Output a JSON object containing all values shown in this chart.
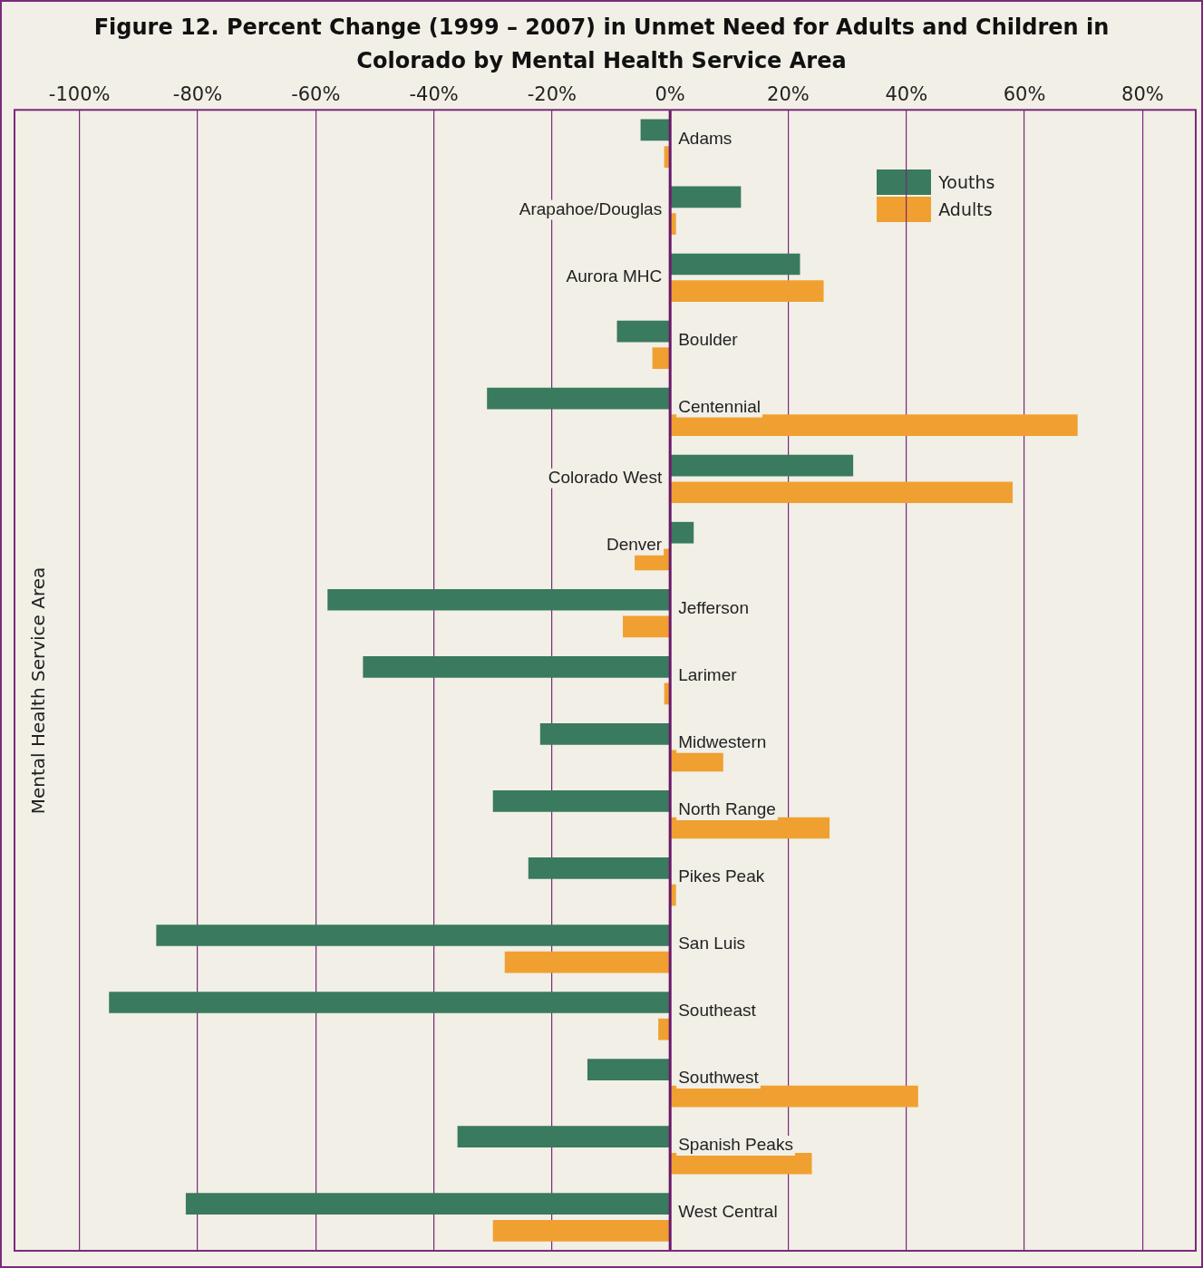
{
  "chart_data": {
    "type": "bar",
    "orientation": "horizontal",
    "title": "Figure 12. Percent Change (1999 – 2007) in Unmet Need for Adults and Children in Colorado by Mental Health Service Area",
    "ylabel": "Mental Health Service Area",
    "categories": [
      "Adams",
      "Arapahoe/Douglas",
      "Aurora MHC",
      "Boulder",
      "Centennial",
      "Colorado West",
      "Denver",
      "Jefferson",
      "Larimer",
      "Midwestern",
      "North Range",
      "Pikes Peak",
      "San Luis",
      "Southeast",
      "Southwest",
      "Spanish Peaks",
      "West Central"
    ],
    "series": [
      {
        "name": "Youths",
        "color": "#3a7a5e",
        "values": [
          -5,
          12,
          22,
          -9,
          -31,
          31,
          4,
          -58,
          -52,
          -22,
          -30,
          -24,
          -87,
          -95,
          -14,
          -36,
          -82
        ]
      },
      {
        "name": "Adults",
        "color": "#f0a030",
        "values": [
          -1,
          1,
          26,
          -3,
          69,
          58,
          -6,
          -8,
          -1,
          9,
          27,
          1,
          -28,
          -2,
          42,
          24,
          -30
        ]
      }
    ],
    "xlim": [
      -111,
      89
    ],
    "xticks": [
      {
        "value": -100,
        "label": "-100%"
      },
      {
        "value": -80,
        "label": "-80%"
      },
      {
        "value": -60,
        "label": "-60%"
      },
      {
        "value": -40,
        "label": "-40%"
      },
      {
        "value": -20,
        "label": "-20%"
      },
      {
        "value": 0,
        "label": "0%"
      },
      {
        "value": 20,
        "label": "20%"
      },
      {
        "value": 40,
        "label": "40%"
      },
      {
        "value": 60,
        "label": "60%"
      },
      {
        "value": 80,
        "label": "80%"
      }
    ],
    "grid": "x",
    "legend": "top right"
  }
}
